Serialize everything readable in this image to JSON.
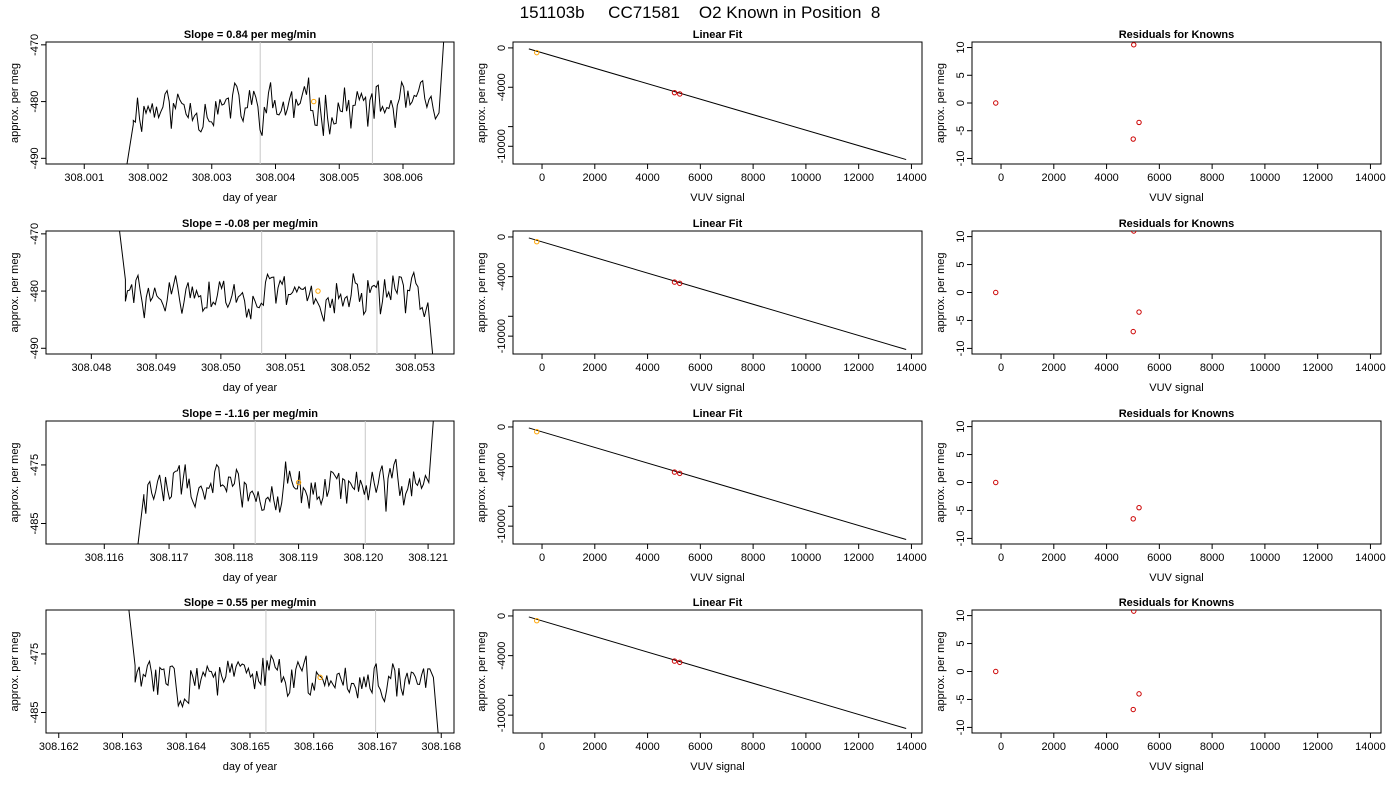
{
  "page_title": "151103b     CC71581    O2 Known in Position  8",
  "colors": {
    "trace": "#000000",
    "vline": "#c8c8c8",
    "known_point": "#ffa500",
    "residual_point": "#cc0000",
    "axis": "#000000"
  },
  "chart_data": [
    {
      "id": "r1c1",
      "type": "line",
      "title": "Slope =  0.84  per meg/min",
      "xlabel": "day of year",
      "ylabel": "approx. per meg",
      "xlim": [
        308.0004,
        308.0068
      ],
      "ylim": [
        -491,
        -469.5
      ],
      "xticks": [
        308.001,
        308.002,
        308.003,
        308.004,
        308.005,
        308.006
      ],
      "xtick_labels": [
        "308.001",
        "308.002",
        "308.003",
        "308.004",
        "308.005",
        "308.006"
      ],
      "yticks": [
        -490,
        -480,
        -470
      ],
      "ytick_labels": [
        "-490",
        "-480",
        "-470"
      ],
      "vlines": [
        308.00376,
        308.00552
      ],
      "trace": {
        "start": 308.00167,
        "end": 308.00664,
        "base": -481,
        "amp": 2.2,
        "seed": 11,
        "entry": [
          -491,
          -484
        ],
        "exit": [
          -482,
          -469
        ]
      },
      "marker": {
        "x": 308.0046,
        "y": -480
      }
    },
    {
      "id": "r1c2",
      "type": "scatter",
      "title": "Linear Fit",
      "xlabel": "VUV signal",
      "ylabel": "approx. per meg",
      "xlim": [
        -1100,
        14400
      ],
      "ylim": [
        -11800,
        600
      ],
      "xticks": [
        0,
        2000,
        4000,
        6000,
        8000,
        10000,
        12000,
        14000
      ],
      "xtick_labels": [
        "0",
        "2000",
        "4000",
        "6000",
        "8000",
        "10000",
        "12000",
        "14000"
      ],
      "yticks": [
        -10000,
        -8000,
        -4000,
        0
      ],
      "ytick_labels": [
        "-10000",
        "",
        "-4000",
        "0"
      ],
      "fit_line": [
        [
          -500,
          -100
        ],
        [
          13800,
          -11350
        ]
      ],
      "points": [
        [
          5020,
          -4550
        ],
        [
          5220,
          -4680
        ]
      ],
      "known_points": [
        [
          -200,
          -480
        ]
      ]
    },
    {
      "id": "r1c3",
      "type": "scatter",
      "title": "Residuals for Knowns",
      "xlabel": "VUV signal",
      "ylabel": "approx. per meg",
      "xlim": [
        -1100,
        14400
      ],
      "ylim": [
        -11,
        11
      ],
      "xticks": [
        0,
        2000,
        4000,
        6000,
        8000,
        10000,
        12000,
        14000
      ],
      "xtick_labels": [
        "0",
        "2000",
        "4000",
        "6000",
        "8000",
        "10000",
        "12000",
        "14000"
      ],
      "yticks": [
        -10,
        -5,
        0,
        5,
        10
      ],
      "ytick_labels": [
        "-10",
        "-5",
        "0",
        "5",
        "10"
      ],
      "points": [
        [
          -200,
          0
        ],
        [
          5030,
          10.5
        ],
        [
          5010,
          -6.5
        ],
        [
          5230,
          -3.5
        ]
      ]
    },
    {
      "id": "r2c1",
      "type": "line",
      "title": "Slope =  -0.08  per meg/min",
      "xlabel": "day of year",
      "ylabel": "approx. per meg",
      "xlim": [
        308.0473,
        308.0536
      ],
      "ylim": [
        -491,
        -469.5
      ],
      "xticks": [
        308.048,
        308.049,
        308.05,
        308.051,
        308.052,
        308.053
      ],
      "xtick_labels": [
        "308.048",
        "308.049",
        "308.050",
        "308.051",
        "308.052",
        "308.053"
      ],
      "yticks": [
        -490,
        -480,
        -470
      ],
      "ytick_labels": [
        "-490",
        "-480",
        "-470"
      ],
      "vlines": [
        308.05063,
        308.05241
      ],
      "trace": {
        "start": 308.04843,
        "end": 308.05327,
        "base": -481,
        "amp": 2.0,
        "seed": 29,
        "entry": [
          -469,
          -478
        ],
        "exit": [
          -482,
          -491
        ]
      },
      "marker": {
        "x": 308.0515,
        "y": -480
      }
    },
    {
      "id": "r2c2",
      "type": "scatter",
      "title": "Linear Fit",
      "xlabel": "VUV signal",
      "ylabel": "approx. per meg",
      "xlim": [
        -1100,
        14400
      ],
      "ylim": [
        -11800,
        600
      ],
      "xticks": [
        0,
        2000,
        4000,
        6000,
        8000,
        10000,
        12000,
        14000
      ],
      "xtick_labels": [
        "0",
        "2000",
        "4000",
        "6000",
        "8000",
        "10000",
        "12000",
        "14000"
      ],
      "yticks": [
        -10000,
        -8000,
        -4000,
        0
      ],
      "ytick_labels": [
        "-10000",
        "",
        "-4000",
        "0"
      ],
      "fit_line": [
        [
          -500,
          -100
        ],
        [
          13800,
          -11350
        ]
      ],
      "points": [
        [
          5020,
          -4550
        ],
        [
          5220,
          -4680
        ]
      ],
      "known_points": [
        [
          -200,
          -480
        ]
      ]
    },
    {
      "id": "r2c3",
      "type": "scatter",
      "title": "Residuals for Knowns",
      "xlabel": "VUV signal",
      "ylabel": "approx. per meg",
      "xlim": [
        -1100,
        14400
      ],
      "ylim": [
        -11,
        11
      ],
      "xticks": [
        0,
        2000,
        4000,
        6000,
        8000,
        10000,
        12000,
        14000
      ],
      "xtick_labels": [
        "0",
        "2000",
        "4000",
        "6000",
        "8000",
        "10000",
        "12000",
        "14000"
      ],
      "yticks": [
        -10,
        -5,
        0,
        5,
        10
      ],
      "ytick_labels": [
        "-10",
        "-5",
        "0",
        "5",
        "10"
      ],
      "points": [
        [
          -200,
          0
        ],
        [
          5030,
          11
        ],
        [
          5010,
          -7
        ],
        [
          5230,
          -3.5
        ]
      ]
    },
    {
      "id": "r3c1",
      "type": "line",
      "title": "Slope =  -1.16  per meg/min",
      "xlabel": "day of year",
      "ylabel": "approx. per meg",
      "xlim": [
        308.1151,
        308.1214
      ],
      "ylim": [
        -488.5,
        -467.5
      ],
      "xticks": [
        308.116,
        308.117,
        308.118,
        308.119,
        308.12,
        308.121
      ],
      "xtick_labels": [
        "308.116",
        "308.117",
        "308.118",
        "308.119",
        "308.120",
        "308.121"
      ],
      "yticks": [
        -485,
        -475
      ],
      "ytick_labels": [
        "-485",
        "-475"
      ],
      "vlines": [
        308.11833,
        308.12003
      ],
      "trace": {
        "start": 308.11652,
        "end": 308.12108,
        "base": -479,
        "amp": 2.2,
        "seed": 47,
        "entry": [
          -488.5,
          -480
        ],
        "exit": [
          -478,
          -467.5
        ]
      },
      "marker": {
        "x": 308.119,
        "y": -478
      }
    },
    {
      "id": "r3c2",
      "type": "scatter",
      "title": "Linear Fit",
      "xlabel": "VUV signal",
      "ylabel": "approx. per meg",
      "xlim": [
        -1100,
        14400
      ],
      "ylim": [
        -11800,
        600
      ],
      "xticks": [
        0,
        2000,
        4000,
        6000,
        8000,
        10000,
        12000,
        14000
      ],
      "xtick_labels": [
        "0",
        "2000",
        "4000",
        "6000",
        "8000",
        "10000",
        "12000",
        "14000"
      ],
      "yticks": [
        -10000,
        -8000,
        -4000,
        0
      ],
      "ytick_labels": [
        "-10000",
        "",
        "-4000",
        "0"
      ],
      "fit_line": [
        [
          -500,
          -100
        ],
        [
          13800,
          -11350
        ]
      ],
      "points": [
        [
          5020,
          -4550
        ],
        [
          5220,
          -4680
        ]
      ],
      "known_points": [
        [
          -200,
          -480
        ]
      ]
    },
    {
      "id": "r3c3",
      "type": "scatter",
      "title": "Residuals for Knowns",
      "xlabel": "VUV signal",
      "ylabel": "approx. per meg",
      "xlim": [
        -1100,
        14400
      ],
      "ylim": [
        -11,
        11
      ],
      "xticks": [
        0,
        2000,
        4000,
        6000,
        8000,
        10000,
        12000,
        14000
      ],
      "xtick_labels": [
        "0",
        "2000",
        "4000",
        "6000",
        "8000",
        "10000",
        "12000",
        "14000"
      ],
      "yticks": [
        -10,
        -5,
        0,
        5,
        10
      ],
      "ytick_labels": [
        "-10",
        "-5",
        "0",
        "5",
        "10"
      ],
      "points": [
        [
          -200,
          0
        ],
        [
          5010,
          -6.5
        ],
        [
          5230,
          -4.5
        ]
      ]
    },
    {
      "id": "r4c1",
      "type": "line",
      "title": "Slope =  0.55  per meg/min",
      "xlabel": "day of year",
      "ylabel": "approx. per meg",
      "xlim": [
        308.1618,
        308.1682
      ],
      "ylim": [
        -488.5,
        -467.5
      ],
      "xticks": [
        308.162,
        308.163,
        308.164,
        308.165,
        308.166,
        308.167,
        308.168
      ],
      "xtick_labels": [
        "308.162",
        "308.163",
        "308.164",
        "308.165",
        "308.166",
        "308.167",
        "308.168"
      ],
      "yticks": [
        -485,
        -475
      ],
      "ytick_labels": [
        "-485",
        "-475"
      ],
      "vlines": [
        308.16525,
        308.16697
      ],
      "trace": {
        "start": 308.1631,
        "end": 308.16795,
        "base": -479,
        "amp": 2.0,
        "seed": 83,
        "entry": [
          -467.5,
          -477
        ],
        "exit": [
          -479,
          -488.5
        ]
      },
      "marker": {
        "x": 308.1661,
        "y": -479
      }
    },
    {
      "id": "r4c2",
      "type": "scatter",
      "title": "Linear Fit",
      "xlabel": "VUV signal",
      "ylabel": "approx. per meg",
      "xlim": [
        -1100,
        14400
      ],
      "ylim": [
        -11800,
        600
      ],
      "xticks": [
        0,
        2000,
        4000,
        6000,
        8000,
        10000,
        12000,
        14000
      ],
      "xtick_labels": [
        "0",
        "2000",
        "4000",
        "6000",
        "8000",
        "10000",
        "12000",
        "14000"
      ],
      "yticks": [
        -10000,
        -8000,
        -4000,
        0
      ],
      "ytick_labels": [
        "-10000",
        "",
        "-4000",
        "0"
      ],
      "fit_line": [
        [
          -500,
          -100
        ],
        [
          13800,
          -11350
        ]
      ],
      "points": [
        [
          5020,
          -4550
        ],
        [
          5220,
          -4680
        ]
      ],
      "known_points": [
        [
          -200,
          -480
        ]
      ]
    },
    {
      "id": "r4c3",
      "type": "scatter",
      "title": "Residuals for Knowns",
      "xlabel": "VUV signal",
      "ylabel": "approx. per meg",
      "xlim": [
        -1100,
        14400
      ],
      "ylim": [
        -11,
        11
      ],
      "xticks": [
        0,
        2000,
        4000,
        6000,
        8000,
        10000,
        12000,
        14000
      ],
      "xtick_labels": [
        "0",
        "2000",
        "4000",
        "6000",
        "8000",
        "10000",
        "12000",
        "14000"
      ],
      "yticks": [
        -10,
        -5,
        0,
        5,
        10
      ],
      "ytick_labels": [
        "-10",
        "-5",
        "0",
        "5",
        "10"
      ],
      "points": [
        [
          -200,
          0
        ],
        [
          5030,
          10.8
        ],
        [
          5010,
          -6.8
        ],
        [
          5230,
          -4
        ]
      ]
    }
  ]
}
